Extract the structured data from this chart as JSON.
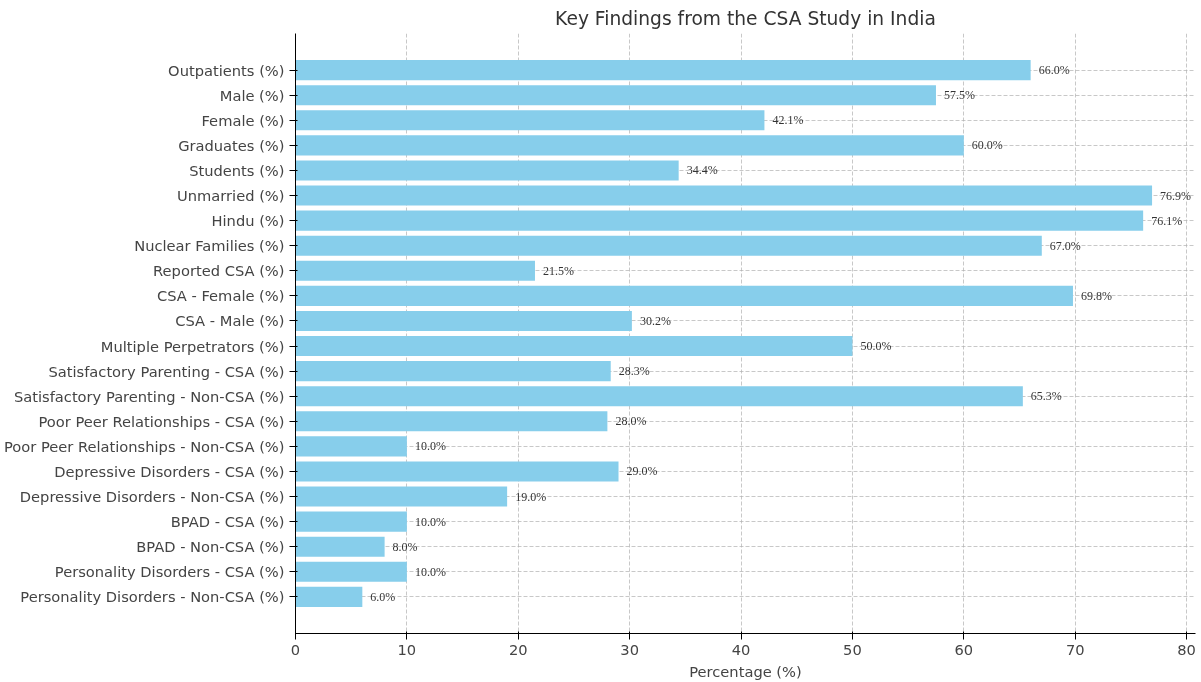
{
  "chart_data": {
    "type": "bar",
    "orientation": "horizontal",
    "title": "Key Findings from the CSA Study in India",
    "xlabel": "Percentage (%)",
    "categories": [
      "Outpatients (%)",
      "Male (%)",
      "Female (%)",
      "Graduates (%)",
      "Students (%)",
      "Unmarried (%)",
      "Hindu (%)",
      "Nuclear Families (%)",
      "Reported CSA (%)",
      "CSA - Female (%)",
      "CSA - Male (%)",
      "Multiple Perpetrators (%)",
      "Satisfactory Parenting - CSA (%)",
      "Satisfactory Parenting - Non-CSA (%)",
      "Poor Peer Relationships - CSA (%)",
      "Poor Peer Relationships - Non-CSA (%)",
      "Depressive Disorders - CSA (%)",
      "Depressive Disorders - Non-CSA (%)",
      "BPAD - CSA (%)",
      "BPAD - Non-CSA (%)",
      "Personality Disorders - CSA (%)",
      "Personality Disorders - Non-CSA (%)"
    ],
    "values": [
      66.0,
      57.5,
      42.1,
      60.0,
      34.4,
      76.9,
      76.1,
      67.0,
      21.5,
      69.8,
      30.2,
      50.0,
      28.3,
      65.3,
      28.0,
      10.0,
      29.0,
      19.0,
      10.0,
      8.0,
      10.0,
      6.0
    ],
    "value_labels": [
      "66.0%",
      "57.5%",
      "42.1%",
      "60.0%",
      "34.4%",
      "76.9%",
      "76.1%",
      "67.0%",
      "21.5%",
      "69.8%",
      "30.2%",
      "50.0%",
      "28.3%",
      "65.3%",
      "28.0%",
      "10.0%",
      "29.0%",
      "19.0%",
      "10.0%",
      "8.0%",
      "10.0%",
      "6.0%"
    ],
    "color": "#87ceeb",
    "xlim": [
      0,
      80.8
    ],
    "xticks": [
      0,
      10,
      20,
      30,
      40,
      50,
      60,
      70,
      80
    ],
    "grid": true
  }
}
